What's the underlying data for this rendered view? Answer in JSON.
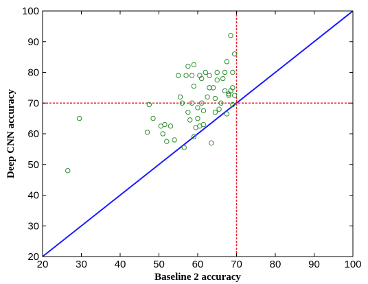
{
  "chart_data": {
    "type": "scatter",
    "xlabel": "Baseline 2 accuracy",
    "ylabel": "Deep CNN accuracy",
    "xlim": [
      20,
      100
    ],
    "ylim": [
      20,
      100
    ],
    "xticks": [
      20,
      30,
      40,
      50,
      60,
      70,
      80,
      90,
      100
    ],
    "yticks": [
      20,
      30,
      40,
      50,
      60,
      70,
      80,
      90,
      100
    ],
    "grid": false,
    "legend": "none",
    "colors": {
      "points": "#2e8b2e",
      "diagonal": "#1a1aff",
      "reference": "#e8202a"
    },
    "series": [
      {
        "values": [
          [
            26.5,
            48
          ],
          [
            29.5,
            65
          ],
          [
            47,
            60.5
          ],
          [
            47.5,
            69.5
          ],
          [
            48.5,
            65
          ],
          [
            50.5,
            62.5
          ],
          [
            51,
            60
          ],
          [
            51.5,
            63
          ],
          [
            52,
            57.5
          ],
          [
            53,
            62.5
          ],
          [
            54,
            58
          ],
          [
            55,
            79
          ],
          [
            55.5,
            72
          ],
          [
            56,
            70
          ],
          [
            56.5,
            55.5
          ],
          [
            57,
            79
          ],
          [
            57.5,
            82
          ],
          [
            57.5,
            67
          ],
          [
            58,
            64.5
          ],
          [
            58.5,
            79
          ],
          [
            58.5,
            70
          ],
          [
            59,
            82.5
          ],
          [
            59,
            75.5
          ],
          [
            59,
            59
          ],
          [
            59.5,
            62
          ],
          [
            60,
            68.5
          ],
          [
            60,
            65
          ],
          [
            60.5,
            62.5
          ],
          [
            60.5,
            79
          ],
          [
            61,
            70
          ],
          [
            61,
            78
          ],
          [
            61.5,
            67.5
          ],
          [
            61.5,
            63
          ],
          [
            62,
            80
          ],
          [
            62.5,
            72
          ],
          [
            63,
            75
          ],
          [
            63,
            79
          ],
          [
            63.5,
            57
          ],
          [
            64,
            75
          ],
          [
            64.5,
            71.5
          ],
          [
            64.5,
            67
          ],
          [
            65,
            77.5
          ],
          [
            65,
            80
          ],
          [
            65.5,
            68
          ],
          [
            66,
            70
          ],
          [
            66.5,
            78
          ],
          [
            67,
            80
          ],
          [
            67,
            74
          ],
          [
            67.5,
            83.5
          ],
          [
            67.5,
            66.5
          ],
          [
            68,
            73
          ],
          [
            68,
            72.5
          ],
          [
            68.5,
            92
          ],
          [
            68.5,
            74
          ],
          [
            69,
            69.5
          ],
          [
            69,
            80
          ],
          [
            69,
            75
          ],
          [
            69.5,
            72.5
          ],
          [
            69.5,
            86
          ]
        ]
      }
    ],
    "lines": [
      {
        "kind": "diagonal",
        "from": [
          20,
          20
        ],
        "to": [
          100,
          100
        ]
      },
      {
        "kind": "vertical-dashed",
        "x": 70
      },
      {
        "kind": "horizontal-dashed",
        "y": 70
      }
    ]
  }
}
